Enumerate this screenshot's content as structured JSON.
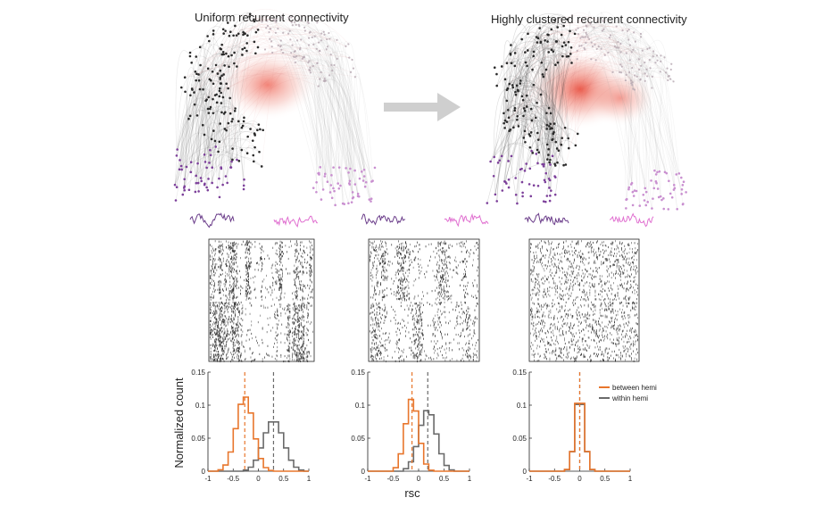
{
  "titles": {
    "left": "Uniform recurrent connectivity",
    "right": "Highly clustered recurrent connectivity"
  },
  "colors": {
    "hemi_a_nodes": "#2a2a2a",
    "hemi_b_nodes": "#c98fd0",
    "trace_a": "#6b3d8a",
    "trace_b": "#e070d0",
    "core_glow": "#ee5a4a",
    "arrow": "#cfcfcf",
    "between_hemi": "#e8762c",
    "within_hemi": "#6a6a6a"
  },
  "rasters": {
    "count": 3,
    "descriptions": [
      "strong hemisphere-specific bands",
      "weaker bands",
      "no structure"
    ]
  },
  "histogram_axes": {
    "ylabel": "Normalized count",
    "xlabel": "rsc",
    "x_ticks": [
      "-1",
      "-0.5",
      "0",
      "0.5",
      "1"
    ],
    "y_ticks": [
      "0",
      "0.05",
      "0.1",
      "0.15"
    ],
    "xlim": [
      -1,
      1
    ],
    "ylim": [
      0,
      0.15
    ]
  },
  "legend": {
    "between": "between hemi",
    "within": "within hemi"
  },
  "chart_data": [
    {
      "type": "line",
      "series": [
        {
          "name": "between hemi",
          "mean": -0.27,
          "sd": 0.17,
          "peak": 0.113
        },
        {
          "name": "within hemi",
          "mean": 0.3,
          "sd": 0.2,
          "peak": 0.077
        }
      ],
      "xlim": [
        -1,
        1
      ],
      "ylim": [
        0,
        0.15
      ]
    },
    {
      "type": "line",
      "series": [
        {
          "name": "between hemi",
          "mean": -0.13,
          "sd": 0.13,
          "peak": 0.11
        },
        {
          "name": "within hemi",
          "mean": 0.18,
          "sd": 0.17,
          "peak": 0.093
        }
      ],
      "xlim": [
        -1,
        1
      ],
      "ylim": [
        0,
        0.15
      ]
    },
    {
      "type": "line",
      "series": [
        {
          "name": "between hemi",
          "mean": 0.0,
          "sd": 0.09,
          "peak": 0.12
        },
        {
          "name": "within hemi",
          "mean": 0.0,
          "sd": 0.09,
          "peak": 0.118
        }
      ],
      "xlim": [
        -1,
        1
      ],
      "ylim": [
        0,
        0.15
      ]
    }
  ]
}
